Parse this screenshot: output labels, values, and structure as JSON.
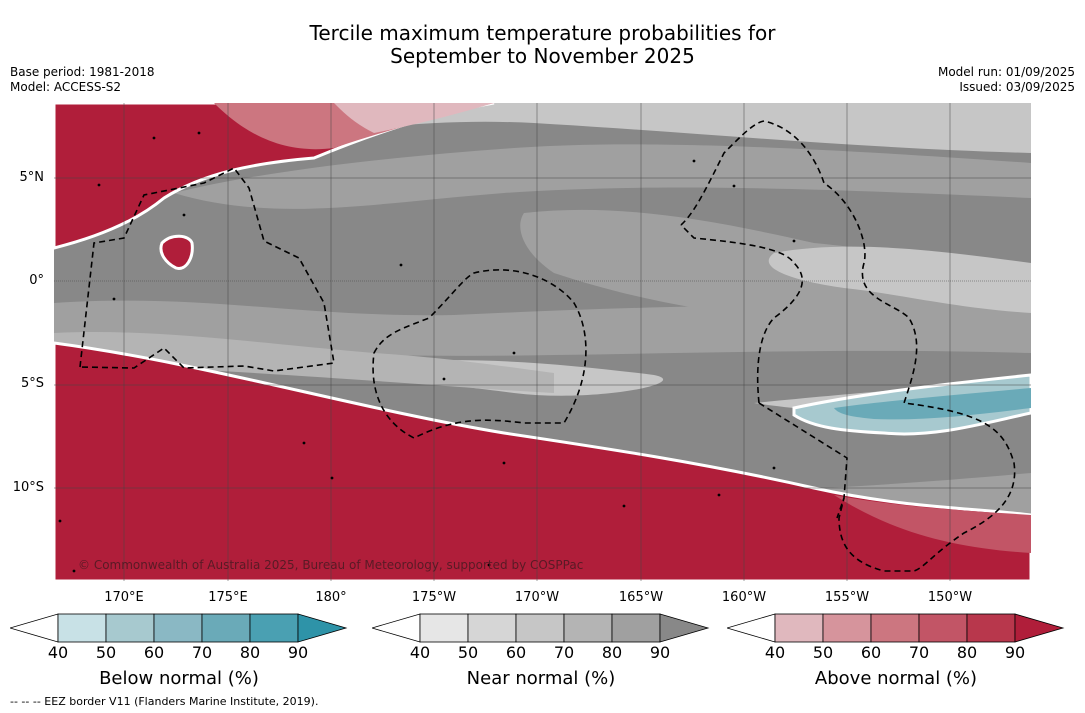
{
  "title": {
    "line1": "Tercile maximum temperature probabilities for",
    "line2": "September to November 2025"
  },
  "info_left": {
    "base_period": "Base period: 1981-2018",
    "model": "Model: ACCESS-S2"
  },
  "info_right": {
    "model_run": "Model run: 01/09/2025",
    "issued": "Issued: 03/09/2025"
  },
  "latitude_labels": [
    "5°N",
    "0°",
    "5°S",
    "10°S"
  ],
  "longitude_labels": [
    "170°E",
    "175°E",
    "180°",
    "175°W",
    "170°W",
    "165°W",
    "160°W",
    "155°W",
    "150°W"
  ],
  "copyright": "© Commonwealth of Australia 2025, Bureau of Meteorology, supported by COSPPac",
  "colorbars": [
    {
      "label": "Below normal (%)",
      "ticks": [
        "40",
        "50",
        "60",
        "70",
        "80",
        "90"
      ],
      "colors": [
        "#ffffff",
        "#c8e1e6",
        "#a7c9cf",
        "#8ab8c4",
        "#6aaab8",
        "#4aa0b2",
        "#2e93a8"
      ]
    },
    {
      "label": "Near normal (%)",
      "ticks": [
        "40",
        "50",
        "60",
        "70",
        "80",
        "90"
      ],
      "colors": [
        "#ffffff",
        "#e6e6e6",
        "#d6d6d6",
        "#c6c6c6",
        "#b4b4b4",
        "#a0a0a0",
        "#888888"
      ]
    },
    {
      "label": "Above normal (%)",
      "ticks": [
        "40",
        "50",
        "60",
        "70",
        "80",
        "90"
      ],
      "colors": [
        "#ffffff",
        "#e0b8be",
        "#d6949c",
        "#cc7680",
        "#c25566",
        "#b8374c",
        "#b01e3a"
      ]
    }
  ],
  "footer": "--  --  -- EEZ border V11 (Flanders Marine Institute, 2019)."
}
